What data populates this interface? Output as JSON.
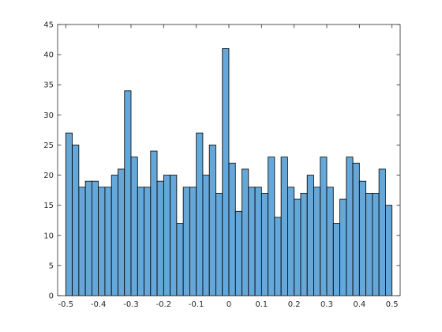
{
  "chart_data": {
    "type": "bar",
    "title": "",
    "xlabel": "",
    "ylabel": "",
    "xlim": [
      -0.525,
      0.525
    ],
    "ylim": [
      0,
      45
    ],
    "bin_width": 0.02,
    "bin_start": -0.5,
    "values": [
      27,
      25,
      18,
      19,
      19,
      18,
      18,
      20,
      21,
      34,
      23,
      18,
      18,
      24,
      19,
      20,
      20,
      12,
      18,
      18,
      27,
      20,
      25,
      17,
      41,
      22,
      14,
      21,
      18,
      18,
      17,
      23,
      13,
      23,
      18,
      16,
      17,
      20,
      18,
      23,
      18,
      12,
      16,
      23,
      22,
      19,
      17,
      17,
      21,
      15
    ],
    "x_ticks": [
      -0.5,
      -0.4,
      -0.3,
      -0.2,
      -0.1,
      0,
      0.1,
      0.2,
      0.3,
      0.4,
      0.5
    ],
    "x_tick_labels": [
      "-0.5",
      "-0.4",
      "-0.3",
      "-0.2",
      "-0.1",
      "0",
      "0.1",
      "0.2",
      "0.3",
      "0.4",
      "0.5"
    ],
    "y_ticks": [
      0,
      5,
      10,
      15,
      20,
      25,
      30,
      35,
      40,
      45
    ],
    "y_tick_labels": [
      "0",
      "5",
      "10",
      "15",
      "20",
      "25",
      "30",
      "35",
      "40",
      "45"
    ],
    "bar_color": "#4f9bd3",
    "edge_color": "#000000",
    "grid": false,
    "box": true
  }
}
